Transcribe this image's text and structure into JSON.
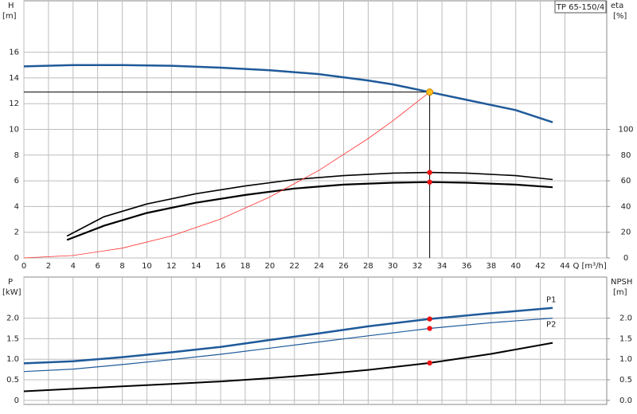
{
  "chart_data": [
    {
      "type": "line",
      "annotation": "TP 65-150/4",
      "y_label": "H",
      "y_unit": "[m]",
      "y2_label": "eta",
      "y2_unit": "[%]",
      "x_label": "Q [m³/h]",
      "xlim": [
        0,
        47.4
      ],
      "xticks": [
        0,
        2,
        4,
        6,
        8,
        10,
        12,
        14,
        16,
        18,
        20,
        22,
        24,
        26,
        28,
        30,
        32,
        34,
        36,
        38,
        40,
        42,
        44
      ],
      "ylim": [
        0,
        20
      ],
      "yticks": [
        0,
        2,
        4,
        6,
        8,
        10,
        12,
        14,
        16
      ],
      "y2lim": [
        0,
        200
      ],
      "y2ticks": [
        0,
        20,
        40,
        60,
        80,
        100
      ],
      "grid": true,
      "xtick_labels": true,
      "series": [
        {
          "color": "#1f5a9a",
          "width": 2.5,
          "x": [
            0,
            4,
            8,
            12,
            16,
            20,
            24,
            28,
            30,
            33,
            36,
            40,
            43
          ],
          "values": [
            14.9,
            15.0,
            15.0,
            14.95,
            14.8,
            14.6,
            14.3,
            13.8,
            13.5,
            12.9,
            12.3,
            11.5,
            10.55
          ]
        },
        {
          "color": "#000000",
          "width": 1.6,
          "axis": "y2",
          "x": [
            3.5,
            6.5,
            10,
            14,
            18,
            22,
            26,
            30,
            33,
            36,
            40,
            43
          ],
          "values": [
            17,
            32,
            42,
            50,
            56,
            61,
            64,
            66,
            66.5,
            66,
            64,
            61
          ]
        },
        {
          "color": "#000000",
          "width": 2.2,
          "axis": "y2",
          "x": [
            3.5,
            6.5,
            10,
            14,
            18,
            22,
            26,
            30,
            33,
            36,
            40,
            43
          ],
          "values": [
            14,
            25,
            35,
            43,
            49,
            54,
            57,
            58.5,
            59,
            58.5,
            57,
            55
          ]
        },
        {
          "color": "#ff3030",
          "width": 0.8,
          "x": [
            0,
            4,
            8,
            12,
            16,
            20,
            24,
            28,
            30,
            33
          ],
          "values": [
            0,
            0.19,
            0.76,
            1.71,
            3.03,
            4.74,
            6.82,
            9.29,
            10.66,
            12.9
          ]
        }
      ],
      "duty_point": {
        "x": 33,
        "y": 12.9,
        "color": "#ffc020"
      },
      "points": [
        {
          "x": 33,
          "y": 66.5,
          "axis": "y2",
          "color": "#ee1111"
        },
        {
          "x": 33,
          "y": 59,
          "axis": "y2",
          "color": "#ee1111"
        }
      ]
    },
    {
      "type": "line",
      "y_label": "P",
      "y_unit": "[kW]",
      "y2_label": "NPSH",
      "y2_unit": "[m]",
      "xlim": [
        0,
        47.4
      ],
      "xticks": [
        0,
        2,
        4,
        6,
        8,
        10,
        12,
        14,
        16,
        18,
        20,
        22,
        24,
        26,
        28,
        30,
        32,
        34,
        36,
        38,
        40,
        42,
        44
      ],
      "ylim": [
        -0.1,
        3
      ],
      "yticks": [
        0,
        0.5,
        {
          "value": 1,
          "label": "1.0"
        },
        1.5,
        {
          "value": 2,
          "label": "2.0"
        }
      ],
      "y2lim": [
        -0.1,
        3
      ],
      "y2ticks": [
        {
          "value": 0,
          "label": "0.0"
        },
        0.5,
        {
          "value": 1,
          "label": "1.0"
        },
        1.5,
        {
          "value": 2,
          "label": "2.0"
        }
      ],
      "grid": true,
      "xtick_labels": false,
      "series": [
        {
          "name": "P1",
          "color": "#1f5a9a",
          "width": 2.5,
          "x": [
            0,
            4,
            8,
            12,
            16,
            20,
            24,
            28,
            33,
            38,
            43
          ],
          "values": [
            0.9,
            0.95,
            1.05,
            1.17,
            1.3,
            1.47,
            1.63,
            1.8,
            1.98,
            2.12,
            2.25
          ]
        },
        {
          "name": "P2",
          "color": "#1f5a9a",
          "width": 1.2,
          "x": [
            0,
            4,
            8,
            12,
            16,
            20,
            24,
            28,
            33,
            38,
            43
          ],
          "values": [
            0.7,
            0.76,
            0.87,
            0.99,
            1.12,
            1.27,
            1.42,
            1.57,
            1.75,
            1.89,
            2.0
          ]
        },
        {
          "color": "#000000",
          "width": 2,
          "axis": "y2",
          "x": [
            0,
            4,
            8,
            12,
            16,
            20,
            24,
            28,
            33,
            38,
            43
          ],
          "values": [
            0.22,
            0.28,
            0.34,
            0.4,
            0.46,
            0.54,
            0.63,
            0.74,
            0.91,
            1.13,
            1.4
          ]
        }
      ],
      "points": [
        {
          "x": 33,
          "y": 1.98,
          "color": "#ee1111"
        },
        {
          "x": 33,
          "y": 1.75,
          "color": "#ee1111"
        },
        {
          "x": 33,
          "y": 0.91,
          "axis": "y2",
          "color": "#ee1111"
        }
      ]
    }
  ]
}
